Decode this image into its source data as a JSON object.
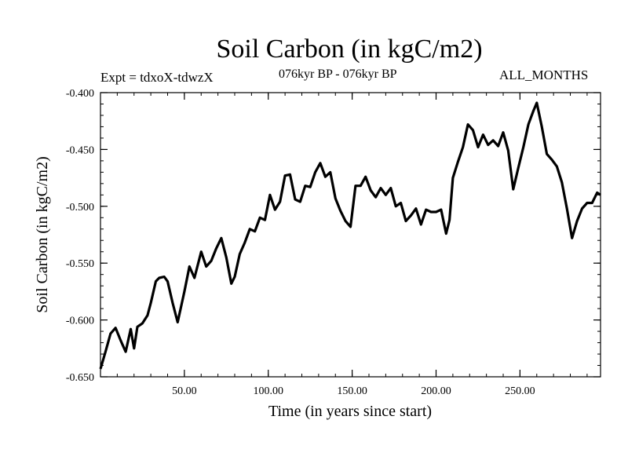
{
  "header": {
    "title": "Soil Carbon (in kgC/m2)",
    "expt": "Expt = tdxoX-tdwzX",
    "period": "076kyr BP - 076kyr BP",
    "months": "ALL_MONTHS"
  },
  "colors": {
    "line": "#000000",
    "background": "#ffffff",
    "axes": "#000000"
  },
  "chart_data": {
    "type": "line",
    "title": "Soil Carbon (in kgC/m2)",
    "xlabel": "Time (in years since start)",
    "ylabel": "Soil Carbon (in kgC/m2)",
    "xlim": [
      0,
      298
    ],
    "ylim": [
      -0.65,
      -0.4
    ],
    "x_ticks": [
      50,
      100,
      150,
      200,
      250
    ],
    "x_tick_labels": [
      "50.00",
      "100.00",
      "150.00",
      "200.00",
      "250.00"
    ],
    "y_ticks": [
      -0.4,
      -0.45,
      -0.5,
      -0.55,
      -0.6,
      -0.65
    ],
    "y_tick_labels": [
      "-0.400",
      "-0.450",
      "-0.500",
      "-0.550",
      "-0.600",
      "-0.650"
    ],
    "grid": false,
    "series": [
      {
        "x": [
          0,
          3,
          6,
          9,
          12,
          15,
          18,
          20,
          22,
          25,
          28,
          30,
          33,
          35,
          38,
          40,
          43,
          46,
          50,
          53,
          56,
          60,
          63,
          66,
          69,
          72,
          75,
          78,
          80,
          83,
          86,
          89,
          92,
          95,
          98,
          101,
          104,
          107,
          110,
          113,
          116,
          119,
          122,
          125,
          128,
          131,
          134,
          137,
          140,
          143,
          146,
          149,
          152,
          155,
          158,
          161,
          164,
          167,
          170,
          173,
          176,
          179,
          182,
          185,
          188,
          191,
          194,
          197,
          200,
          203,
          206,
          208,
          210,
          213,
          216,
          219,
          222,
          225,
          228,
          231,
          234,
          237,
          240,
          243,
          246,
          249,
          252,
          255,
          258,
          260,
          263,
          266,
          269,
          272,
          275,
          278,
          281,
          284,
          287,
          290,
          293,
          296,
          298
        ],
        "values": [
          -0.643,
          -0.628,
          -0.612,
          -0.607,
          -0.618,
          -0.628,
          -0.608,
          -0.625,
          -0.606,
          -0.603,
          -0.596,
          -0.585,
          -0.566,
          -0.563,
          -0.562,
          -0.566,
          -0.585,
          -0.602,
          -0.575,
          -0.553,
          -0.563,
          -0.54,
          -0.553,
          -0.548,
          -0.537,
          -0.528,
          -0.545,
          -0.568,
          -0.562,
          -0.542,
          -0.532,
          -0.52,
          -0.522,
          -0.51,
          -0.512,
          -0.49,
          -0.503,
          -0.496,
          -0.473,
          -0.472,
          -0.494,
          -0.496,
          -0.482,
          -0.483,
          -0.47,
          -0.462,
          -0.474,
          -0.47,
          -0.493,
          -0.504,
          -0.513,
          -0.518,
          -0.482,
          -0.482,
          -0.474,
          -0.486,
          -0.492,
          -0.484,
          -0.49,
          -0.484,
          -0.5,
          -0.497,
          -0.513,
          -0.508,
          -0.502,
          -0.516,
          -0.503,
          -0.505,
          -0.505,
          -0.503,
          -0.524,
          -0.512,
          -0.475,
          -0.461,
          -0.448,
          -0.428,
          -0.433,
          -0.448,
          -0.437,
          -0.446,
          -0.442,
          -0.447,
          -0.435,
          -0.451,
          -0.485,
          -0.466,
          -0.448,
          -0.428,
          -0.416,
          -0.409,
          -0.43,
          -0.454,
          -0.459,
          -0.465,
          -0.479,
          -0.502,
          -0.528,
          -0.513,
          -0.502,
          -0.497,
          -0.497,
          -0.488,
          -0.49
        ]
      }
    ]
  }
}
